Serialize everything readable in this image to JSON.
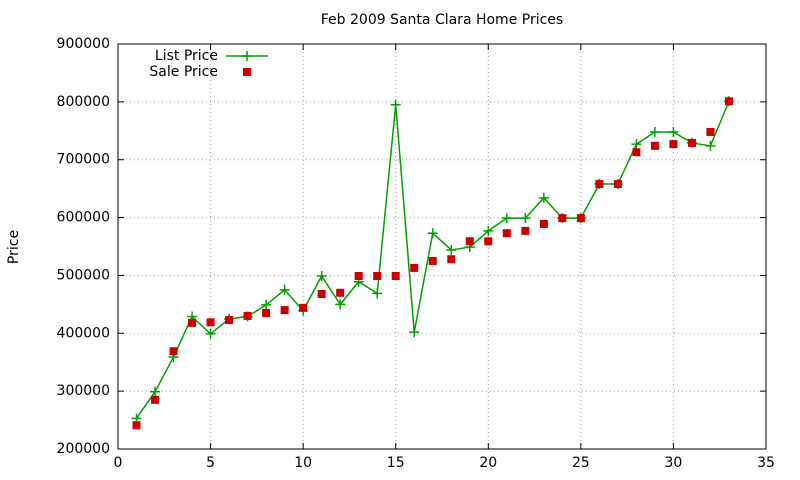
{
  "chart_data": {
    "type": "scatter",
    "title": "Feb 2009 Santa Clara Home Prices",
    "y_label": "Price",
    "x": [
      1,
      2,
      3,
      4,
      5,
      6,
      7,
      8,
      9,
      10,
      11,
      12,
      13,
      14,
      15,
      16,
      17,
      18,
      19,
      20,
      21,
      22,
      23,
      24,
      25,
      26,
      27,
      28,
      29,
      30,
      31,
      32,
      33
    ],
    "series": [
      {
        "name": "List Price",
        "color": "#00a000",
        "line": true,
        "marker": "plus",
        "values": [
          253000,
          299000,
          359000,
          429000,
          399000,
          425000,
          429000,
          449000,
          475000,
          439000,
          499000,
          450000,
          489000,
          469000,
          795000,
          402000,
          573000,
          544000,
          549000,
          577000,
          599000,
          599000,
          634000,
          599000,
          599000,
          658000,
          658000,
          727000,
          748000,
          748000,
          729000,
          724000,
          801000
        ]
      },
      {
        "name": "Sale Price",
        "color": "#cc0000",
        "line": false,
        "marker": "square",
        "values": [
          241000,
          285000,
          369000,
          418000,
          419000,
          423000,
          430000,
          435000,
          440000,
          444000,
          468000,
          470000,
          499000,
          499000,
          499000,
          513000,
          525000,
          528000,
          559000,
          559000,
          573000,
          577000,
          589000,
          599000,
          599000,
          658000,
          658000,
          713000,
          724000,
          727000,
          729000,
          748000,
          801000
        ]
      }
    ],
    "xlim": [
      0,
      35
    ],
    "xticks": [
      0,
      5,
      10,
      15,
      20,
      25,
      30,
      35
    ],
    "ylim": [
      200000,
      900000
    ],
    "yticks": [
      200000,
      300000,
      400000,
      500000,
      600000,
      700000,
      800000,
      900000
    ],
    "grid": true,
    "legend": "top-left"
  }
}
